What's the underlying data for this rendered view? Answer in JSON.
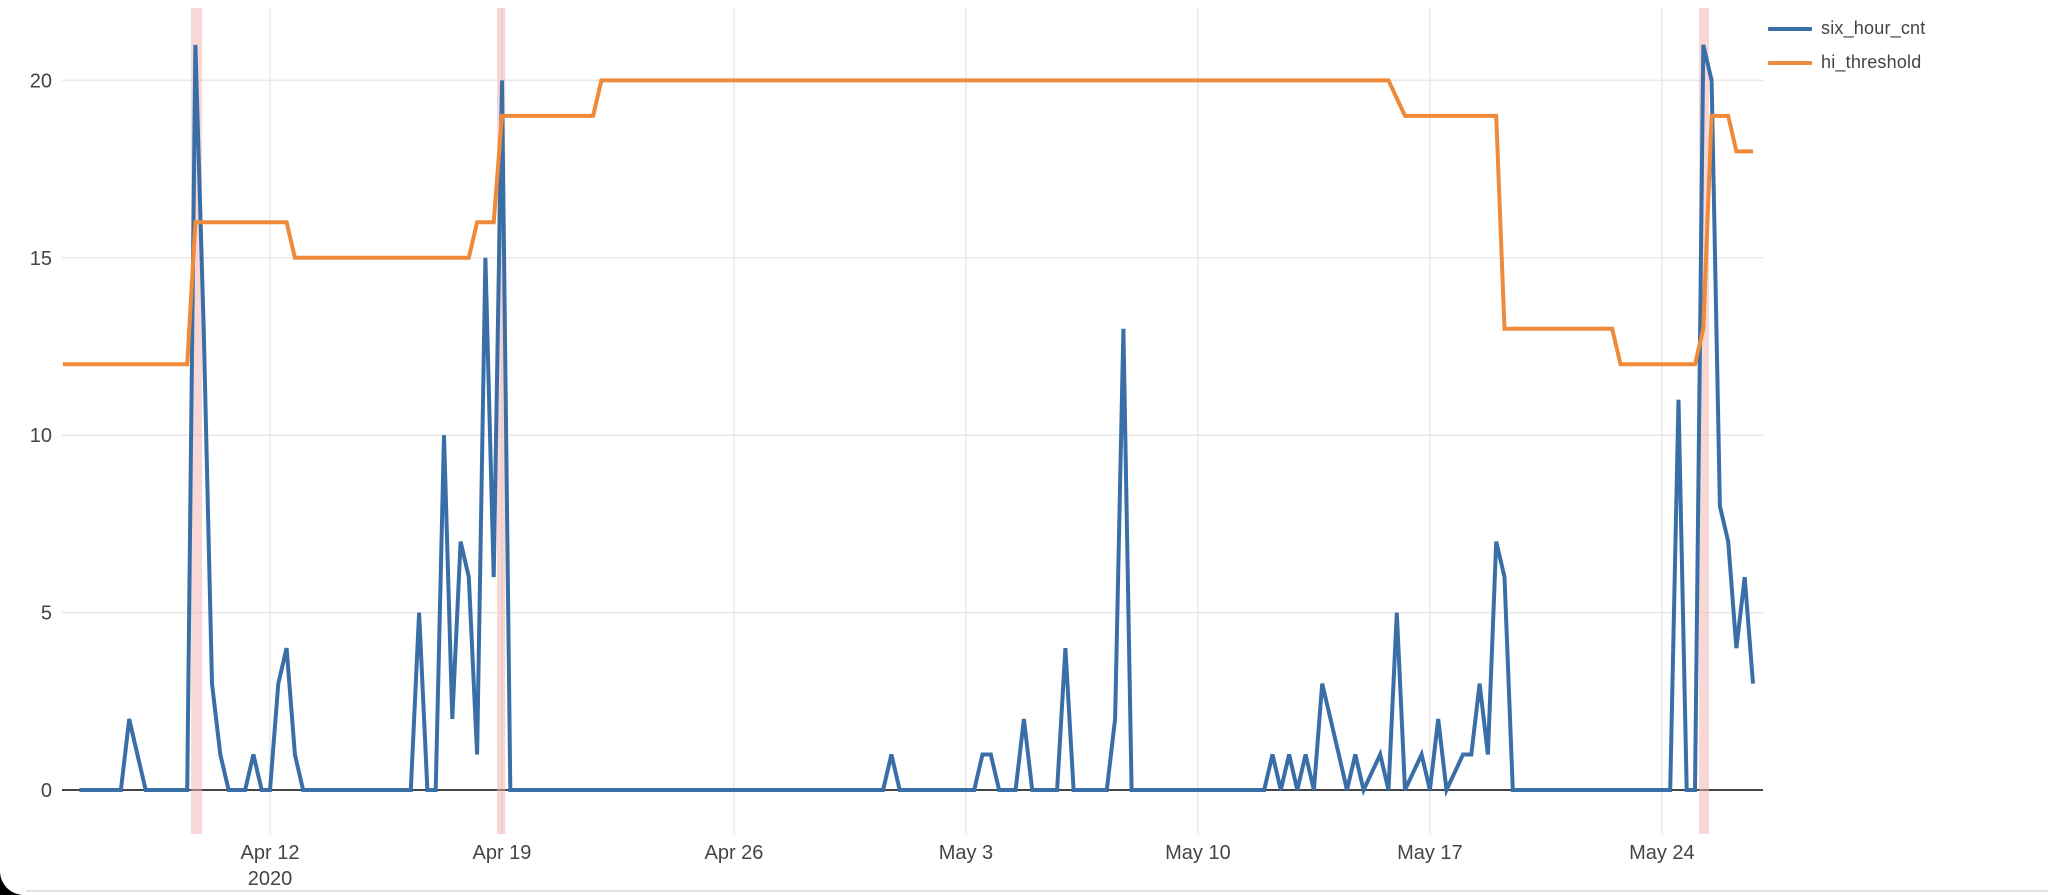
{
  "chart_data": {
    "type": "line",
    "title": "",
    "xlabel": "",
    "ylabel": "",
    "t_unit": "days since 2020-04-05 00:00 (0.25 = 6 hours)",
    "x_axis": {
      "tick_t": [
        7,
        14,
        21,
        28,
        35,
        42,
        49
      ],
      "tick_labels": [
        "Apr 12",
        "Apr 19",
        "Apr 26",
        "May 3",
        "May 10",
        "May 17",
        "May 24"
      ],
      "year_label": "2020",
      "year_under_tick_index": 0,
      "range_t": [
        0.7,
        45.25
      ]
    },
    "y_axis": {
      "ticks": [
        0,
        5,
        10,
        15,
        20
      ],
      "tick_labels": [
        "0",
        "5",
        "10",
        "15",
        "20"
      ],
      "range": [
        0,
        22.3
      ],
      "grid": true
    },
    "legend_position": "top-right",
    "series": [
      {
        "name": "six_hour_cnt",
        "color": "#3a6ea7",
        "width": 4,
        "points": [
          [
            1.25,
            0
          ],
          [
            2.5,
            0
          ],
          [
            2.75,
            2
          ],
          [
            3.0,
            1
          ],
          [
            3.25,
            0
          ],
          [
            4.5,
            0
          ],
          [
            4.75,
            21
          ],
          [
            5.0,
            13
          ],
          [
            5.25,
            3
          ],
          [
            5.5,
            1
          ],
          [
            5.75,
            0
          ],
          [
            6.25,
            0
          ],
          [
            6.5,
            1
          ],
          [
            6.75,
            0
          ],
          [
            7.0,
            0
          ],
          [
            7.25,
            3
          ],
          [
            7.5,
            4
          ],
          [
            7.75,
            1
          ],
          [
            8.0,
            0
          ],
          [
            11.25,
            0
          ],
          [
            11.5,
            5
          ],
          [
            11.75,
            0
          ],
          [
            12.0,
            0
          ],
          [
            12.25,
            10
          ],
          [
            12.5,
            2
          ],
          [
            12.75,
            7
          ],
          [
            13.0,
            6
          ],
          [
            13.25,
            1
          ],
          [
            13.5,
            15
          ],
          [
            13.75,
            6
          ],
          [
            14.0,
            20
          ],
          [
            14.25,
            0
          ],
          [
            25.5,
            0
          ],
          [
            25.75,
            1
          ],
          [
            26.0,
            0
          ],
          [
            28.25,
            0
          ],
          [
            28.5,
            1
          ],
          [
            28.75,
            1
          ],
          [
            29.0,
            0
          ],
          [
            29.5,
            0
          ],
          [
            29.75,
            2
          ],
          [
            30.0,
            0
          ],
          [
            30.75,
            0
          ],
          [
            31.0,
            4
          ],
          [
            31.25,
            0
          ],
          [
            32.25,
            0
          ],
          [
            32.5,
            2
          ],
          [
            32.75,
            13
          ],
          [
            33.0,
            0
          ],
          [
            37.0,
            0
          ],
          [
            37.25,
            1
          ],
          [
            37.5,
            0
          ],
          [
            37.75,
            1
          ],
          [
            38.0,
            0
          ],
          [
            38.25,
            1
          ],
          [
            38.5,
            0
          ],
          [
            38.75,
            3
          ],
          [
            39.0,
            2
          ],
          [
            39.25,
            1
          ],
          [
            39.5,
            0
          ],
          [
            39.75,
            1
          ],
          [
            40.0,
            0
          ],
          [
            40.5,
            1
          ],
          [
            40.75,
            0
          ],
          [
            41.0,
            5
          ],
          [
            41.25,
            0
          ],
          [
            41.75,
            1
          ],
          [
            42.0,
            0
          ],
          [
            42.25,
            2
          ],
          [
            42.5,
            0
          ],
          [
            43.0,
            1
          ],
          [
            43.25,
            1
          ],
          [
            43.5,
            3
          ],
          [
            43.75,
            1
          ],
          [
            44.0,
            7
          ],
          [
            44.25,
            6
          ],
          [
            44.5,
            0
          ],
          [
            49.25,
            0
          ],
          [
            49.5,
            11
          ],
          [
            49.75,
            0
          ],
          [
            50.0,
            0
          ],
          [
            50.25,
            21
          ],
          [
            50.5,
            20
          ],
          [
            50.75,
            8
          ],
          [
            51.0,
            7
          ],
          [
            51.25,
            4
          ],
          [
            51.5,
            6
          ],
          [
            51.75,
            3
          ]
        ]
      },
      {
        "name": "hi_threshold",
        "color": "#ee8a39",
        "width": 4,
        "points": [
          [
            0.75,
            12
          ],
          [
            4.5,
            12
          ],
          [
            4.75,
            16
          ],
          [
            7.5,
            16
          ],
          [
            7.75,
            15
          ],
          [
            13.0,
            15
          ],
          [
            13.25,
            16
          ],
          [
            13.75,
            16
          ],
          [
            14.0,
            19
          ],
          [
            16.75,
            19
          ],
          [
            17.0,
            20
          ],
          [
            40.75,
            20
          ],
          [
            41.25,
            19
          ],
          [
            44.0,
            19
          ],
          [
            44.25,
            13
          ],
          [
            47.5,
            13
          ],
          [
            47.75,
            12
          ],
          [
            50.0,
            12
          ],
          [
            50.25,
            13
          ],
          [
            50.5,
            19
          ],
          [
            51.0,
            19
          ],
          [
            51.25,
            18
          ],
          [
            51.75,
            18
          ]
        ]
      }
    ],
    "alarm_bands": {
      "color": "#f2b0b0",
      "opacity": 0.5,
      "ranges_t": [
        [
          4.62,
          4.95
        ],
        [
          13.85,
          14.1
        ],
        [
          50.12,
          50.42
        ]
      ]
    }
  },
  "legend": {
    "items": [
      {
        "label": "six_hour_cnt",
        "color": "#3a6ea7"
      },
      {
        "label": "hi_threshold",
        "color": "#ee8a39"
      }
    ]
  },
  "style_colors": {
    "grid": "#e8e8e8",
    "zeroline": "#444444",
    "tick_text": "#444444",
    "background": "#ffffff",
    "bottom_edge": "#e2e2e2",
    "corner": "#000000"
  }
}
